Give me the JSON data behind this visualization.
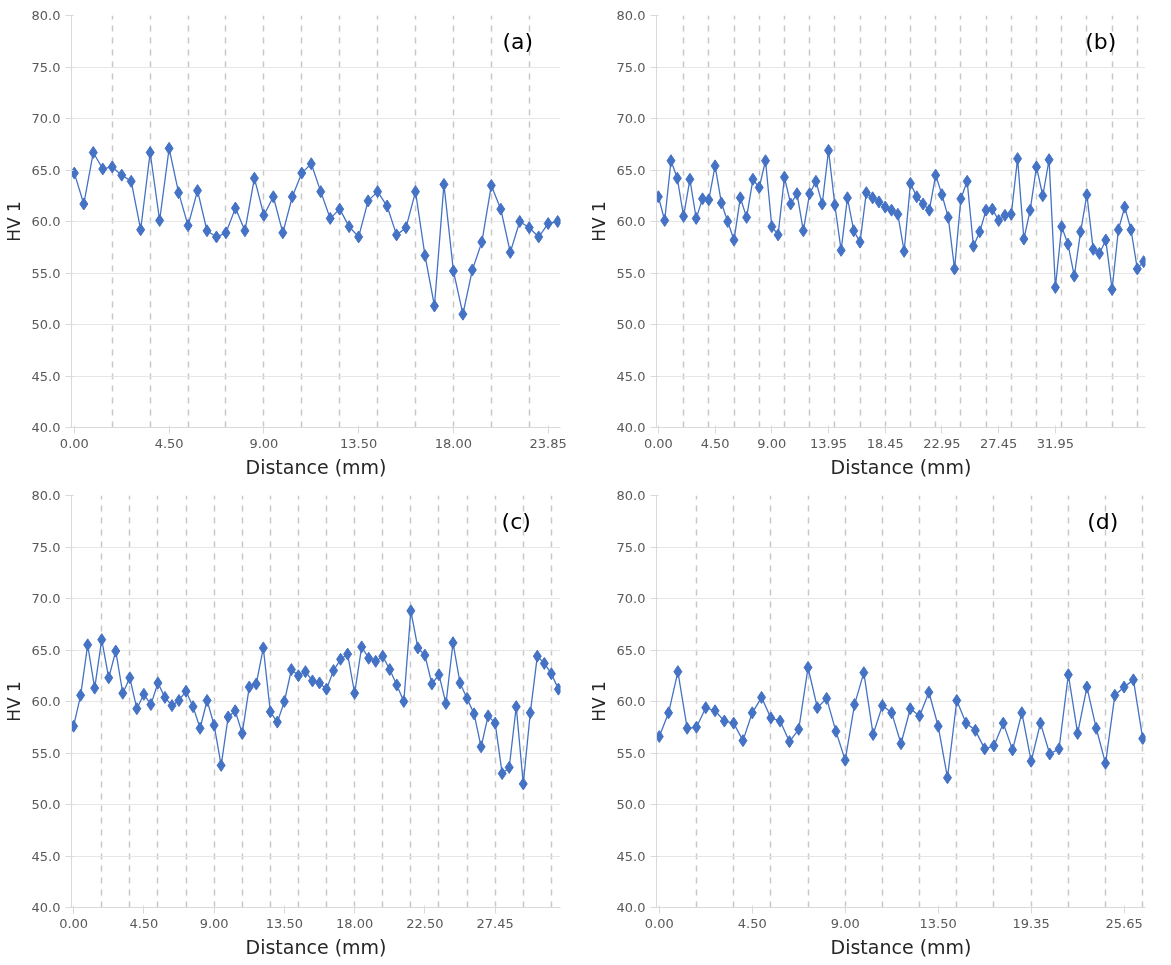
{
  "chart_data": [
    {
      "type": "line",
      "title": "(a)",
      "xlabel": "Distance (mm)",
      "ylabel": "HV 1",
      "grid": true,
      "marker": "diamond",
      "line_style": "solid",
      "categories": [
        "0.00",
        null,
        null,
        null,
        null,
        null,
        null,
        null,
        null,
        null,
        "4.50",
        null,
        null,
        null,
        null,
        null,
        null,
        null,
        null,
        null,
        "9.00",
        null,
        null,
        null,
        null,
        null,
        null,
        null,
        null,
        null,
        "13.50",
        null,
        null,
        null,
        null,
        null,
        null,
        null,
        null,
        null,
        "18.00",
        null,
        null,
        null,
        null,
        null,
        null,
        null,
        null,
        null,
        "23.85",
        null
      ],
      "series": [
        {
          "color": "#4472c4",
          "values": [
            64.7,
            61.7,
            66.7,
            65.1,
            65.3,
            64.5,
            63.9,
            59.2,
            66.7,
            60.1,
            67.1,
            62.8,
            59.6,
            63.0,
            59.1,
            58.5,
            58.9,
            61.3,
            59.1,
            64.2,
            60.6,
            62.4,
            58.9,
            62.4,
            64.7,
            65.6,
            62.9,
            60.3,
            61.2,
            59.5,
            58.5,
            62.0,
            62.9,
            61.5,
            58.7,
            59.4,
            62.9,
            56.7,
            51.8,
            63.6,
            55.2,
            51.0,
            55.3,
            58.0,
            63.5,
            61.2,
            57.0,
            60.0,
            59.4,
            58.5,
            59.8,
            60.0
          ]
        }
      ],
      "ylim": [
        40,
        80
      ],
      "yticks": [
        {
          "value": 40,
          "label": "40.0"
        },
        {
          "value": 45,
          "label": "45.0"
        },
        {
          "value": 50,
          "label": "50.0"
        },
        {
          "value": 55,
          "label": "55.0"
        },
        {
          "value": 60,
          "label": "60.0"
        },
        {
          "value": 65,
          "label": "65.0"
        },
        {
          "value": 70,
          "label": "70.0"
        },
        {
          "value": 75,
          "label": "75.0"
        },
        {
          "value": 80,
          "label": "80.0"
        }
      ]
    },
    {
      "type": "line",
      "title": "(b)",
      "xlabel": "Distance (mm)",
      "ylabel": "HV 1",
      "grid": true,
      "marker": "diamond",
      "line_style": "solid",
      "categories": [
        "0.00",
        null,
        null,
        null,
        null,
        null,
        null,
        null,
        null,
        "4.50",
        null,
        null,
        null,
        null,
        null,
        null,
        null,
        null,
        "9.00",
        null,
        null,
        null,
        null,
        null,
        null,
        null,
        null,
        "13.95",
        null,
        null,
        null,
        null,
        null,
        null,
        null,
        null,
        "18.45",
        null,
        null,
        null,
        null,
        null,
        null,
        null,
        null,
        "22.95",
        null,
        null,
        null,
        null,
        null,
        null,
        null,
        null,
        "27.45",
        null,
        null,
        null,
        null,
        null,
        null,
        null,
        null,
        "31.95",
        null,
        null,
        null,
        null,
        null,
        null,
        null,
        null,
        null,
        null,
        null,
        null,
        null,
        null
      ],
      "series": [
        {
          "color": "#4472c4",
          "values": [
            62.4,
            60.1,
            65.9,
            64.2,
            60.5,
            64.1,
            60.3,
            62.2,
            62.1,
            65.4,
            61.8,
            60.0,
            58.2,
            62.3,
            60.4,
            64.1,
            63.3,
            65.9,
            59.5,
            58.7,
            64.3,
            61.7,
            62.7,
            59.1,
            62.7,
            63.9,
            61.7,
            66.9,
            61.6,
            57.2,
            62.3,
            59.1,
            58.0,
            62.8,
            62.3,
            61.9,
            61.4,
            61.1,
            60.7,
            57.1,
            63.7,
            62.4,
            61.7,
            61.1,
            64.5,
            62.6,
            60.4,
            55.4,
            62.2,
            63.9,
            57.6,
            59.0,
            61.1,
            61.2,
            60.1,
            60.6,
            60.7,
            66.1,
            58.3,
            61.1,
            65.3,
            62.5,
            66.0,
            53.6,
            59.5,
            57.8,
            54.7,
            59.0,
            62.6,
            57.3,
            56.9,
            58.2,
            53.4,
            59.2,
            61.4,
            59.2,
            55.4,
            56.1
          ]
        }
      ],
      "ylim": [
        40,
        80
      ],
      "yticks": [
        {
          "value": 40,
          "label": "40.0"
        },
        {
          "value": 45,
          "label": "45.0"
        },
        {
          "value": 50,
          "label": "50.0"
        },
        {
          "value": 55,
          "label": "55.0"
        },
        {
          "value": 60,
          "label": "60.0"
        },
        {
          "value": 65,
          "label": "65.0"
        },
        {
          "value": 70,
          "label": "70.0"
        },
        {
          "value": 75,
          "label": "75.0"
        },
        {
          "value": 80,
          "label": "80.0"
        }
      ]
    },
    {
      "type": "line",
      "title": "(c)",
      "xlabel": "Distance (mm)",
      "ylabel": "HV 1",
      "grid": true,
      "marker": "diamond",
      "line_style": "solid",
      "categories": [
        "0.00",
        null,
        null,
        null,
        null,
        null,
        null,
        null,
        null,
        null,
        "4.50",
        null,
        null,
        null,
        null,
        null,
        null,
        null,
        null,
        null,
        "9.00",
        null,
        null,
        null,
        null,
        null,
        null,
        null,
        null,
        null,
        "13.50",
        null,
        null,
        null,
        null,
        null,
        null,
        null,
        null,
        null,
        "18.00",
        null,
        null,
        null,
        null,
        null,
        null,
        null,
        null,
        null,
        "22.50",
        null,
        null,
        null,
        null,
        null,
        null,
        null,
        null,
        null,
        "27.45",
        null,
        null,
        null,
        null,
        null,
        null,
        null,
        null,
        null
      ],
      "series": [
        {
          "color": "#4472c4",
          "values": [
            57.6,
            60.6,
            65.5,
            61.3,
            66.0,
            62.3,
            64.9,
            60.8,
            62.3,
            59.3,
            60.7,
            59.7,
            61.8,
            60.4,
            59.6,
            60.1,
            61.0,
            59.5,
            57.4,
            60.1,
            57.7,
            53.8,
            58.5,
            59.1,
            56.9,
            61.4,
            61.7,
            65.2,
            59.0,
            58.0,
            60.0,
            63.1,
            62.5,
            62.9,
            62.0,
            61.8,
            61.2,
            63.0,
            64.1,
            64.6,
            60.8,
            65.3,
            64.2,
            63.9,
            64.4,
            63.1,
            61.6,
            60.0,
            68.8,
            65.2,
            64.5,
            61.7,
            62.6,
            59.8,
            65.7,
            61.8,
            60.3,
            58.8,
            55.6,
            58.6,
            57.9,
            53.0,
            53.6,
            59.5,
            52.0,
            58.9,
            64.4,
            63.7,
            62.7,
            61.2
          ]
        }
      ],
      "ylim": [
        40,
        80
      ],
      "yticks": [
        {
          "value": 40,
          "label": "40.0"
        },
        {
          "value": 45,
          "label": "45.0"
        },
        {
          "value": 50,
          "label": "50.0"
        },
        {
          "value": 55,
          "label": "55.0"
        },
        {
          "value": 60,
          "label": "60.0"
        },
        {
          "value": 65,
          "label": "65.0"
        },
        {
          "value": 70,
          "label": "70.0"
        },
        {
          "value": 75,
          "label": "75.0"
        },
        {
          "value": 80,
          "label": "80.0"
        }
      ]
    },
    {
      "type": "line",
      "title": "(d)",
      "xlabel": "Distance (mm)",
      "ylabel": "HV 1",
      "grid": true,
      "marker": "diamond",
      "line_style": "solid",
      "categories": [
        "0.00",
        null,
        null,
        null,
        null,
        null,
        null,
        null,
        null,
        null,
        "4.50",
        null,
        null,
        null,
        null,
        null,
        null,
        null,
        null,
        null,
        "9.00",
        null,
        null,
        null,
        null,
        null,
        null,
        null,
        null,
        null,
        "13.50",
        null,
        null,
        null,
        null,
        null,
        null,
        null,
        null,
        null,
        "19.35",
        null,
        null,
        null,
        null,
        null,
        null,
        null,
        null,
        null,
        "25.65",
        null,
        null
      ],
      "series": [
        {
          "color": "#4472c4",
          "values": [
            56.6,
            58.9,
            62.9,
            57.4,
            57.5,
            59.4,
            59.1,
            58.1,
            57.9,
            56.2,
            58.9,
            60.4,
            58.4,
            58.1,
            56.1,
            57.3,
            63.3,
            59.4,
            60.3,
            57.1,
            54.3,
            59.7,
            62.8,
            56.8,
            59.6,
            58.9,
            55.9,
            59.3,
            58.6,
            60.9,
            57.6,
            52.6,
            60.1,
            57.9,
            57.2,
            55.4,
            55.7,
            57.9,
            55.3,
            58.9,
            54.2,
            57.9,
            54.9,
            55.4,
            62.6,
            56.9,
            61.4,
            57.4,
            54.0,
            60.6,
            61.4,
            62.1,
            56.4
          ]
        }
      ],
      "ylim": [
        40,
        80
      ],
      "yticks": [
        {
          "value": 40,
          "label": "40.0"
        },
        {
          "value": 45,
          "label": "45.0"
        },
        {
          "value": 50,
          "label": "50.0"
        },
        {
          "value": 55,
          "label": "55.0"
        },
        {
          "value": 60,
          "label": "60.0"
        },
        {
          "value": 65,
          "label": "65.0"
        },
        {
          "value": 70,
          "label": "70.0"
        },
        {
          "value": 75,
          "label": "75.0"
        },
        {
          "value": 80,
          "label": "80.0"
        }
      ]
    }
  ]
}
